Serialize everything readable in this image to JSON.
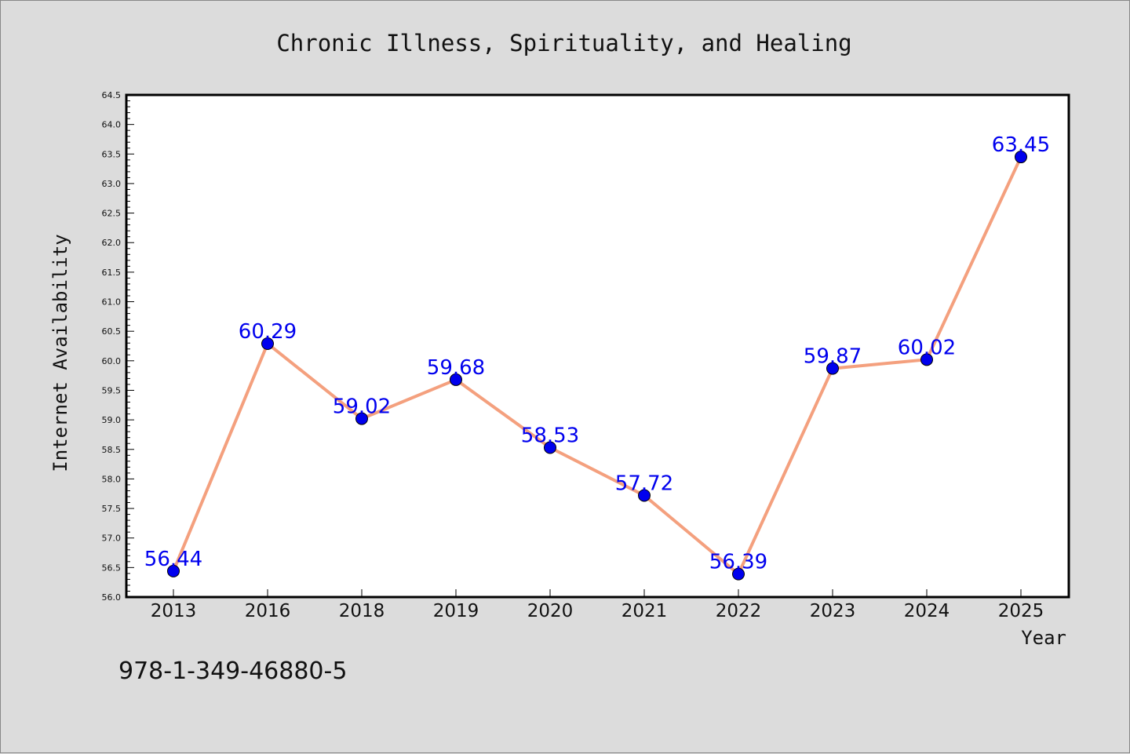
{
  "chart_data": {
    "type": "line",
    "title": "Chronic Illness, Spirituality, and Healing",
    "xlabel": "Year",
    "ylabel": "Internet Availability",
    "categories": [
      "2013",
      "2016",
      "2018",
      "2019",
      "2020",
      "2021",
      "2022",
      "2023",
      "2024",
      "2025"
    ],
    "series": [
      {
        "values": [
          56.44,
          60.29,
          59.02,
          59.68,
          58.53,
          57.72,
          56.39,
          59.87,
          60.02,
          63.45
        ],
        "labels": [
          "56.44",
          "60.29",
          "59.02",
          "59.68",
          "58.53",
          "57.72",
          "56.39",
          "59.87",
          "60.02",
          "63.45"
        ],
        "line_color": "#f4a07e",
        "marker_color": "#0000ee"
      }
    ],
    "ylim": [
      56.0,
      64.5
    ],
    "yticks": [
      56.0,
      56.5,
      57.0,
      57.5,
      58.0,
      58.5,
      59.0,
      59.5,
      60.0,
      60.5,
      61.0,
      61.5,
      62.0,
      62.5,
      63.0,
      63.5,
      64.0,
      64.5
    ],
    "ytick_labels": [
      "56.0",
      "56.5",
      "57.0",
      "57.5",
      "58.0",
      "58.5",
      "59.0",
      "59.5",
      "60.0",
      "60.5",
      "61.0",
      "61.5",
      "62.0",
      "62.5",
      "63.0",
      "63.5",
      "64.0",
      "64.5"
    ],
    "label_color": "#0000ee",
    "grid": false,
    "legend": "none"
  },
  "footer": {
    "isbn": "978-1-349-46880-5"
  }
}
